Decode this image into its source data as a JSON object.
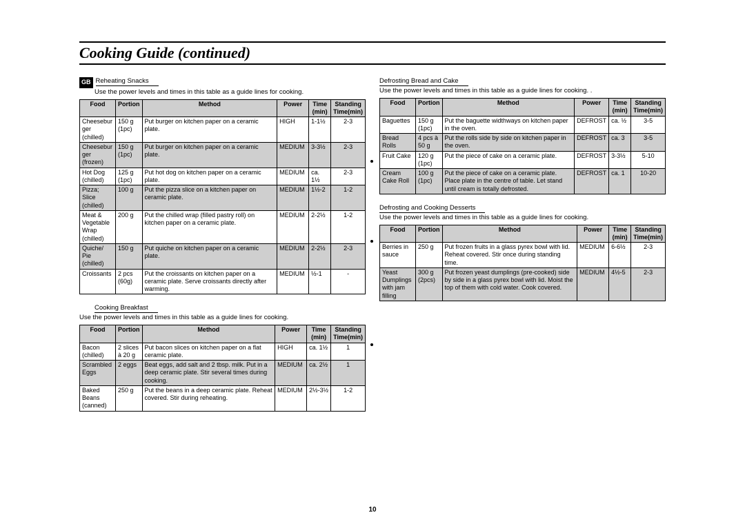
{
  "page_title": "Cooking Guide (continued)",
  "gb_tag": "GB",
  "page_number": "10",
  "captions": {
    "guide": "Use the power levels and times in this table as a guide lines for cooking."
  },
  "headers": [
    "Food",
    "Portion",
    "Method",
    "Power",
    "Time (min)",
    "Standing Time(min)"
  ],
  "sections": [
    {
      "title": "Reheating Snacks",
      "col": 0,
      "first": true,
      "rows": [
        {
          "alt": false,
          "food": "Cheeseburger (chilled)",
          "portion": "150 g (1pc)",
          "method": "Put burger on kitchen paper on a ceramic plate.",
          "power": "HIGH",
          "time": "1-1½",
          "stand": "2-3"
        },
        {
          "alt": true,
          "food": "Cheeseburger (frozen)",
          "portion": "150 g (1pc)",
          "method": "Put burger on kitchen paper on a ceramic plate.",
          "power": "MEDIUM",
          "time": "3-3½",
          "stand": "2-3"
        },
        {
          "alt": false,
          "food": "Hot Dog (chilled)",
          "portion": "125 g (1pc)",
          "method": "Put hot dog on kitchen paper on a ceramic plate.",
          "power": "MEDIUM",
          "time": "ca. 1½",
          "stand": "2-3"
        },
        {
          "alt": true,
          "food": "Pizza; Slice (chilled)",
          "portion": "100 g",
          "method": "Put the pizza slice on a kitchen paper on ceramic plate.",
          "power": "MEDIUM",
          "time": "1½-2",
          "stand": "1-2"
        },
        {
          "alt": false,
          "food": "Meat & Vegetable Wrap (chilled)",
          "portion": "200 g",
          "method": "Put the chilled wrap (filled pastry roll) on kitchen paper on a ceramic plate.",
          "power": "MEDIUM",
          "time": "2-2½",
          "stand": "1-2"
        },
        {
          "alt": true,
          "food": "Quiche/ Pie (chilled)",
          "portion": "150 g",
          "method": "Put quiche on kitchen paper on a ceramic plate.",
          "power": "MEDIUM",
          "time": "2-2½",
          "stand": "2-3"
        },
        {
          "alt": false,
          "food": "Croissants",
          "portion": "2 pcs (60g)",
          "method": "Put the croissants on kitchen paper on a ceramic plate. Serve croissants directly after warming.",
          "power": "MEDIUM",
          "time": "½-1",
          "stand": "-"
        }
      ]
    },
    {
      "title": "Cooking Breakfast",
      "col": 0,
      "first": false,
      "rows": [
        {
          "alt": false,
          "food": "Bacon (chilled)",
          "portion": "2 slices à 20 g",
          "method": "Put bacon slices on kitchen paper on a flat ceramic plate.",
          "power": "HIGH",
          "time": "ca. 1½",
          "stand": "1"
        },
        {
          "alt": true,
          "food": "Scrambled Eggs",
          "portion": "2 eggs",
          "method": "Beat eggs, add salt and 2 tbsp. milk. Put in a deep ceramic plate. Stir several times during cooking.",
          "power": "MEDIUM",
          "time": "ca. 2½",
          "stand": "1"
        },
        {
          "alt": false,
          "food": "Baked Beans (canned)",
          "portion": "250 g",
          "method": "Put the beans in a deep ceramic plate. Reheat covered. Stir during reheating.",
          "power": "MEDIUM",
          "time": "2½-3½",
          "stand": "1-2"
        }
      ]
    },
    {
      "title": "Defrosting Bread and Cake",
      "col": 1,
      "first": true,
      "rows": [
        {
          "alt": false,
          "food": "Baguettes",
          "portion": "150 g (1pc)",
          "method": "Put the baguette widthways on kitchen paper in the oven.",
          "power": "DEFROST",
          "time": "ca. ½",
          "stand": "3-5"
        },
        {
          "alt": true,
          "food": "Bread Rolls",
          "portion": "4 pcs à 50 g",
          "method": "Put the rolls side by side on kitchen paper in the oven.",
          "power": "DEFROST",
          "time": "ca. 3",
          "stand": "3-5"
        },
        {
          "alt": false,
          "food": "Fruit Cake",
          "portion": "120 g (1pc)",
          "method": "Put the piece of cake on a ceramic plate.",
          "power": "DEFROST",
          "time": "3-3½",
          "stand": "5-10"
        },
        {
          "alt": true,
          "food": "Cream Cake Roll",
          "portion": "100 g (1pc)",
          "method": "Put the piece of cake on a ceramic plate. Place plate in the centre of table. Let stand until cream is totally defrosted.",
          "power": "DEFROST",
          "time": "ca. 1",
          "stand": "10-20"
        }
      ]
    },
    {
      "title": "Defrosting and Cooking Desserts",
      "col": 1,
      "first": false,
      "rows": [
        {
          "alt": false,
          "food": "Berries in sauce",
          "portion": "250 g",
          "method": "Put frozen fruits in a glass pyrex bowl  with lid. Reheat covered. Stir once during standing time.",
          "power": "MEDIUM",
          "time": "6-6½",
          "stand": "2-3"
        },
        {
          "alt": true,
          "food": "Yeast Dumplings with jam filling",
          "portion": "300 g (2pcs)",
          "method": "Put frozen yeast dumplings (pre-cooked) side by side in a glass pyrex bowl with lid. Moist the top of them with cold water. Cook covered.",
          "power": "MEDIUM",
          "time": "4½-5",
          "stand": "2-3"
        }
      ]
    }
  ]
}
